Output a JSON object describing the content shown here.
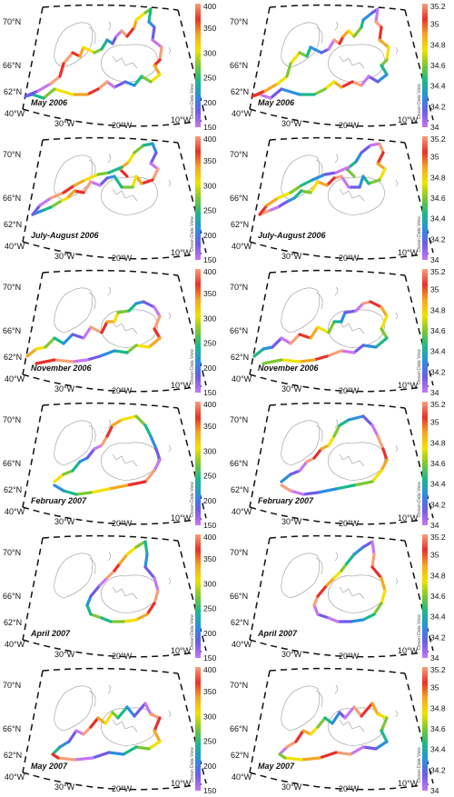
{
  "panels": [
    {
      "label": "May 2006",
      "variable": "co2"
    },
    {
      "label": "May 2006",
      "variable": "salinity"
    },
    {
      "label": "July-August 2006",
      "variable": "co2"
    },
    {
      "label": "July-August 2006",
      "variable": "salinity"
    },
    {
      "label": "November 2006",
      "variable": "co2"
    },
    {
      "label": "November 2006",
      "variable": "salinity"
    },
    {
      "label": "February 2007",
      "variable": "co2"
    },
    {
      "label": "February 2007",
      "variable": "salinity"
    },
    {
      "label": "April 2007",
      "variable": "co2"
    },
    {
      "label": "April 2007",
      "variable": "salinity"
    },
    {
      "label": "May 2007",
      "variable": "co2"
    },
    {
      "label": "May 2007",
      "variable": "salinity"
    }
  ],
  "axes": {
    "lat_labels": [
      "70°N",
      "66°N",
      "62°N"
    ],
    "lon_labels": [
      "40°W",
      "30°W",
      "20°W",
      "10°W"
    ]
  },
  "colorbars": {
    "co2": {
      "ticks": [
        "400",
        "350",
        "300",
        "250",
        "200",
        "150"
      ],
      "min": 150,
      "max": 400
    },
    "salinity": {
      "ticks": [
        "35.2",
        "35",
        "34.8",
        "34.6",
        "34.4",
        "34.2",
        "34"
      ],
      "min": 34,
      "max": 35.2
    },
    "watermark": "Ocean Data View",
    "colors": [
      "#f7a07a",
      "#e8302a",
      "#f5a623",
      "#f2e200",
      "#7cc832",
      "#19b98a",
      "#2a8fe0",
      "#6f5be8",
      "#c777f2"
    ]
  },
  "colors": {
    "frame": "#111111",
    "coast": "#9a9a9a"
  }
}
